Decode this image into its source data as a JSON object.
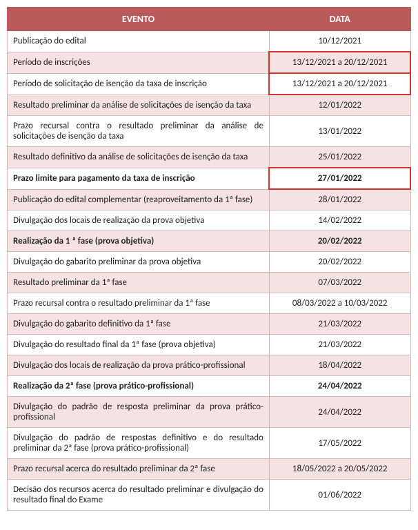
{
  "table": {
    "headers": {
      "event": "EVENTO",
      "date": "DATA"
    },
    "colors": {
      "header_bg": "#bb5a5a",
      "header_text": "#ffffff",
      "row_alt_bg": "#f5e2e2",
      "row_bg": "#ffffff",
      "border": "#d9b8b8",
      "highlight_border": "#d43333",
      "text": "#222222"
    },
    "col_widths": {
      "event_pct": 65,
      "date_pct": 35
    },
    "font_size_header": 14,
    "font_size_cell": 13,
    "rows": [
      {
        "event": "Publicação do edital",
        "date": "10/12/2021",
        "alt": false,
        "bold": false,
        "highlight_date": false
      },
      {
        "event": "Período de inscrições",
        "date": "13/12/2021 a 20/12/2021",
        "alt": true,
        "bold": false,
        "highlight_date": true
      },
      {
        "event": "Período de solicitação de isenção da taxa de inscrição",
        "date": "13/12/2021 a 20/12/2021",
        "alt": false,
        "bold": false,
        "highlight_date": true
      },
      {
        "event": "Resultado preliminar da análise de solicitações de isenção da taxa",
        "date": "12/01/2022",
        "alt": true,
        "bold": false,
        "highlight_date": false
      },
      {
        "event": "Prazo recursal contra o resultado preliminar da análise de solicitações de isenção da taxa",
        "date": "13/01/2022",
        "alt": false,
        "bold": false,
        "highlight_date": false
      },
      {
        "event": "Resultado definitivo da análise de solicitações de isenção da taxa",
        "date": "25/01/2022",
        "alt": true,
        "bold": false,
        "highlight_date": false
      },
      {
        "event": "Prazo limite para pagamento da taxa de inscrição",
        "date": "27/01/2022",
        "alt": false,
        "bold": true,
        "highlight_date": true
      },
      {
        "event": "Publicação do edital complementar (reaproveitamento da 1ª fase)",
        "date": "28/01/2022",
        "alt": true,
        "bold": false,
        "highlight_date": false
      },
      {
        "event": "Divulgação dos locais de realização da prova objetiva",
        "date": "14/02/2022",
        "alt": false,
        "bold": false,
        "highlight_date": false
      },
      {
        "event": "Realização da 1 ª fase (prova objetiva)",
        "date": "20/02/2022",
        "alt": true,
        "bold": true,
        "highlight_date": false
      },
      {
        "event": "Divulgação do gabarito preliminar da prova objetiva",
        "date": "20/02/2022",
        "alt": false,
        "bold": false,
        "highlight_date": false
      },
      {
        "event": "Resultado preliminar da 1ª fase",
        "date": "07/03/2022",
        "alt": true,
        "bold": false,
        "highlight_date": false
      },
      {
        "event": "Prazo recursal contra o resultado preliminar da 1ª fase",
        "date": "08/03/2022 a 10/03/2022",
        "alt": false,
        "bold": false,
        "highlight_date": false
      },
      {
        "event": "Divulgação do gabarito definitivo da 1ª fase",
        "date": "21/03/2022",
        "alt": true,
        "bold": false,
        "highlight_date": false
      },
      {
        "event": "Divulgação do resultado final da 1ª fase (prova objetiva)",
        "date": "21/03/2022",
        "alt": false,
        "bold": false,
        "highlight_date": false
      },
      {
        "event": "Divulgação dos locais de realização da prova prático-profissional",
        "date": "18/04/2022",
        "alt": true,
        "bold": false,
        "highlight_date": false
      },
      {
        "event": "Realização da 2ª fase (prova prático-profissional)",
        "date": "24/04/2022",
        "alt": false,
        "bold": true,
        "highlight_date": false
      },
      {
        "event": "Divulgação do padrão de resposta preliminar da prova prático-profissional",
        "date": "24/04/2022",
        "alt": true,
        "bold": false,
        "highlight_date": false
      },
      {
        "event": "Divulgação do padrão de respostas definitivo e do resultado preliminar da 2ª fase (prova prático-profissional)",
        "date": "17/05/2022",
        "alt": false,
        "bold": false,
        "highlight_date": false
      },
      {
        "event": "Prazo recursal acerca do resultado preliminar da 2ª fase",
        "date": "18/05/2022 a 20/05/2022",
        "alt": true,
        "bold": false,
        "highlight_date": false
      },
      {
        "event": "Decisão dos recursos acerca do resultado preliminar e divulgação do resultado final do Exame",
        "date": "01/06/2022",
        "alt": false,
        "bold": false,
        "highlight_date": false
      }
    ]
  }
}
